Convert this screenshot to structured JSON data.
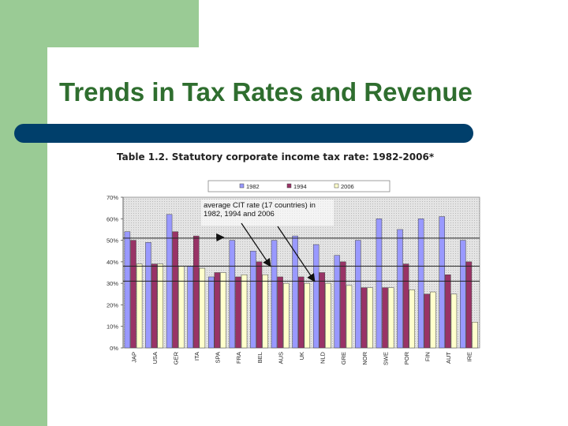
{
  "slide": {
    "title": "Trends in Tax Rates and Revenue",
    "caption": "Table 1.2. Statutory corporate income tax rate: 1982-2006*"
  },
  "colors": {
    "green_accent": "#9acb95",
    "title_green": "#2f6e2f",
    "bar_navy": "#003f6b",
    "series_1982": "#9999ff",
    "series_1994": "#993366",
    "series_2006": "#ffffcc"
  },
  "chart_data": {
    "type": "bar",
    "categories": [
      "JAP",
      "USA",
      "GER",
      "ITA",
      "SPA",
      "FRA",
      "BEL",
      "AUS",
      "UK",
      "NLD",
      "GRE",
      "NOR",
      "SWE",
      "POR",
      "FIN",
      "AUT",
      "IRE"
    ],
    "series": [
      {
        "name": "1982",
        "color": "#9999ff",
        "values": [
          54,
          49,
          62,
          38,
          33,
          50,
          45,
          50,
          52,
          48,
          43,
          50,
          60,
          55,
          60,
          61,
          50
        ]
      },
      {
        "name": "1994",
        "color": "#993366",
        "values": [
          50,
          39,
          54,
          52,
          35,
          33,
          40,
          33,
          33,
          35,
          40,
          28,
          28,
          39,
          25,
          34,
          40
        ]
      },
      {
        "name": "2006",
        "color": "#ffffcc",
        "values": [
          39,
          39,
          38,
          37,
          35,
          34,
          34,
          30,
          30,
          30,
          29,
          28,
          28,
          27,
          26,
          25,
          12
        ]
      }
    ],
    "yticks": [
      "0%",
      "10%",
      "20%",
      "30%",
      "40%",
      "50%",
      "60%",
      "70%"
    ],
    "ylim": [
      0,
      70
    ],
    "reference_lines": [
      51,
      38,
      31
    ],
    "annotation": [
      "average CIT rate (17 countries) in",
      "1982, 1994 and 2006"
    ],
    "legend_position": "top",
    "grid": false
  }
}
